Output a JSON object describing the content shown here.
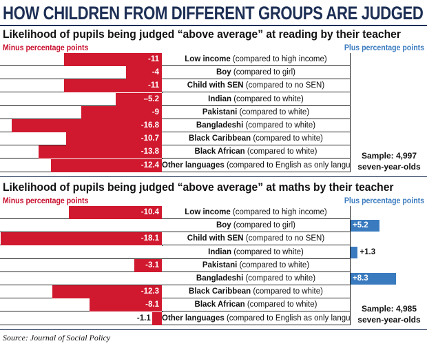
{
  "title": "HOW CHILDREN FROM DIFFERENT GROUPS ARE JUDGED",
  "source": "Source: Journal of Social Policy",
  "colors": {
    "negative": "#d0192f",
    "positive": "#3a7bbf",
    "title": "#1c2e54"
  },
  "chart_data": [
    {
      "type": "bar",
      "title": "Likelihood of pupils being judged “above average” at reading by their teacher",
      "minus_label": "Minus percentage points",
      "plus_label": "Plus percentage points",
      "sample": [
        "Sample: 4,997",
        "seven-year-olds"
      ],
      "xlim": [
        -20,
        12
      ],
      "categories": [
        {
          "name": "Low income",
          "note": " (compared to high income)"
        },
        {
          "name": "Boy",
          "note": " (compared to girl)"
        },
        {
          "name": "Child with SEN",
          "note": " (compared to no SEN)"
        },
        {
          "name": "Indian",
          "note": " (compared to white)"
        },
        {
          "name": "Pakistani",
          "note": " (compared to white)"
        },
        {
          "name": "Bangladeshi",
          "note": " (compared to white)"
        },
        {
          "name": "Black Caribbean",
          "note": " (compared to white)"
        },
        {
          "name": "Black African",
          "note": " (compared to white)"
        },
        {
          "name": "Other languages",
          "note": " (compared to English as only language)"
        }
      ],
      "values": [
        -11,
        -4,
        -11,
        -5.2,
        -9,
        -16.8,
        -10.7,
        -13.8,
        -12.4
      ],
      "value_labels": [
        "-11",
        "-4",
        "-11",
        "–5.2",
        "-9",
        "-16.8",
        "-10.7",
        "-13.8",
        "-12.4"
      ]
    },
    {
      "type": "bar",
      "title": "Likelihood of pupils being judged “above average” at maths by their teacher",
      "minus_label": "Minus percentage points",
      "plus_label": "Plus percentage points",
      "sample": [
        "Sample: 4,985",
        "seven-year-olds"
      ],
      "xlim": [
        -20,
        12
      ],
      "categories": [
        {
          "name": "Low income",
          "note": " (compared to high income)"
        },
        {
          "name": "Boy",
          "note": " (compared to girl)"
        },
        {
          "name": "Child with SEN",
          "note": " (compared to no SEN)"
        },
        {
          "name": "Indian",
          "note": " (compared to white)"
        },
        {
          "name": "Pakistani",
          "note": " (compared to white)"
        },
        {
          "name": "Bangladeshi",
          "note": " (compared to white)"
        },
        {
          "name": "Black Caribbean",
          "note": " (compared to white)"
        },
        {
          "name": "Black African",
          "note": " (compared to white)"
        },
        {
          "name": "Other languages",
          "note": " (compared to English as only language)"
        }
      ],
      "values": [
        -10.4,
        5.2,
        -18.1,
        1.3,
        -3.1,
        8.3,
        -12.3,
        -8.1,
        -1.1
      ],
      "value_labels": [
        "-10.4",
        "+5.2",
        "-18.1",
        "+1.3",
        "-3.1",
        "+8.3",
        "-12.3",
        "-8.1",
        "-1.1"
      ]
    }
  ]
}
